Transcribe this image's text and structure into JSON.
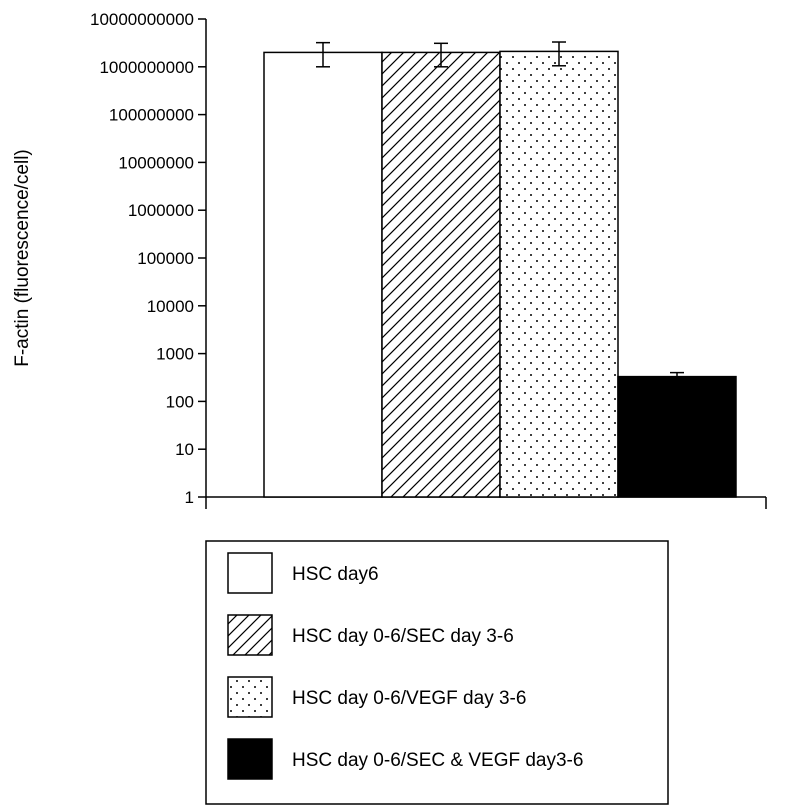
{
  "chart_data": {
    "type": "bar",
    "ylabel": "F-actin (fluorescence/cell)",
    "yscale": "log",
    "ylim": [
      1,
      10000000000
    ],
    "yticks": [
      {
        "value": 1,
        "label": "1"
      },
      {
        "value": 10,
        "label": "10"
      },
      {
        "value": 100,
        "label": "100"
      },
      {
        "value": 1000,
        "label": "1000"
      },
      {
        "value": 10000,
        "label": "10000"
      },
      {
        "value": 100000,
        "label": "100000"
      },
      {
        "value": 1000000,
        "label": "1000000"
      },
      {
        "value": 10000000,
        "label": "10000000"
      },
      {
        "value": 100000000,
        "label": "100000000"
      },
      {
        "value": 1000000000,
        "label": "1000000000"
      },
      {
        "value": 10000000000,
        "label": "10000000000"
      }
    ],
    "legend_position": "bottom",
    "series": [
      {
        "name": "HSC day6",
        "value": 2000000000,
        "err_low": 1000000000,
        "err_high": 3200000000,
        "pattern": "white",
        "color": "#ffffff"
      },
      {
        "name": "HSC day 0-6/SEC day 3-6",
        "value": 2000000000,
        "err_low": 1000000000,
        "err_high": 3100000000,
        "pattern": "hatch",
        "color": "#000000"
      },
      {
        "name": "HSC day 0-6/VEGF day 3-6",
        "value": 2100000000,
        "err_low": 1050000000,
        "err_high": 3300000000,
        "pattern": "dots",
        "color": "#000000"
      },
      {
        "name": "HSC day 0-6/SEC & VEGF day3-6",
        "value": 330,
        "err_low": 280,
        "err_high": 400,
        "pattern": "black",
        "color": "#000000"
      }
    ]
  }
}
